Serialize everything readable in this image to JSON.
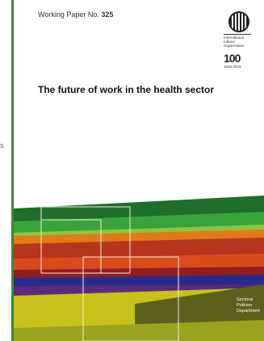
{
  "spine": {
    "mark": "S"
  },
  "cover": {
    "series_label": "Working Paper No.",
    "series_number": "325",
    "title": "The future of work in the health sector",
    "logo": {
      "org_lines": [
        "International",
        "Labour",
        "Organization"
      ],
      "centenary_mark": "100",
      "centenary_years": "1919-2019"
    },
    "department": [
      "Sectoral",
      "Policies",
      "Department"
    ]
  },
  "colors": {
    "spine_accent": "#3a8a2a",
    "bands": [
      "#1f6f2a",
      "#3aa23a",
      "#8cc63f",
      "#e07b1a",
      "#b5351d",
      "#d94b1c",
      "#2a2c8c",
      "#5a2b7a",
      "#c7c21b",
      "#5d5f1c",
      "#9aa320"
    ]
  }
}
